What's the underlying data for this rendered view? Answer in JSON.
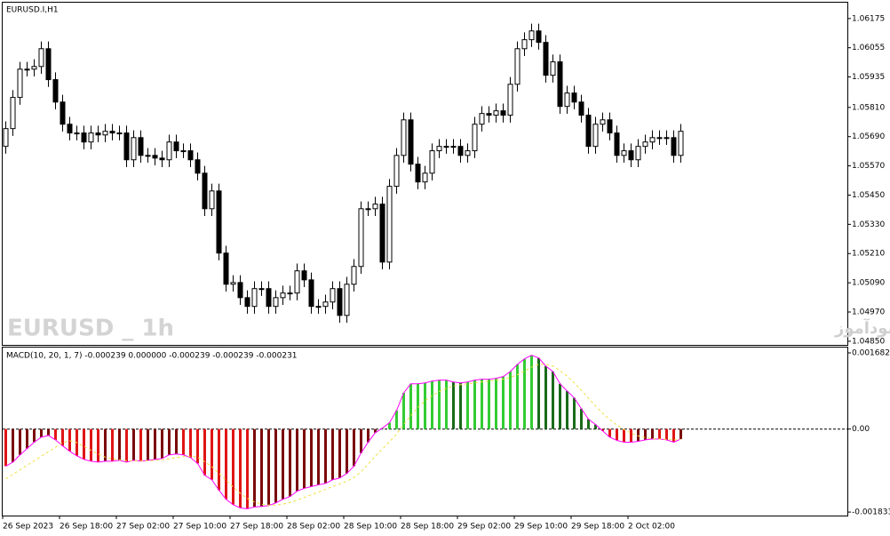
{
  "chart_data": [
    {
      "type": "candlestick",
      "title": "EURUSD.I,H1",
      "annotations": [
        "EURUSD _ 1h",
        "انتشار در سایت سودآموز"
      ],
      "up_color": "#ffffff",
      "down_color": "#000000",
      "outline_color": "#000000",
      "categories": [
        "26 Sep 2023",
        null,
        null,
        null,
        null,
        null,
        null,
        null,
        "26 Sep 18:00",
        null,
        null,
        null,
        null,
        null,
        null,
        null,
        "27 Sep 02:00",
        null,
        null,
        null,
        null,
        null,
        null,
        null,
        "27 Sep 10:00",
        null,
        null,
        null,
        null,
        null,
        null,
        null,
        "27 Sep 18:00",
        null,
        null,
        null,
        null,
        null,
        null,
        null,
        "28 Sep 02:00",
        null,
        null,
        null,
        null,
        null,
        null,
        null,
        "28 Sep 10:00",
        null,
        null,
        null,
        null,
        null,
        null,
        null,
        "28 Sep 18:00",
        null,
        null,
        null,
        null,
        null,
        null,
        null,
        "29 Sep 02:00",
        null,
        null,
        null,
        null,
        null,
        null,
        null,
        "29 Sep 10:00",
        null,
        null,
        null,
        null,
        null,
        null,
        null,
        "29 Sep 18:00",
        null,
        null,
        null,
        null,
        null,
        null,
        null,
        "2 Oct 02:00",
        null,
        null,
        null,
        null,
        null,
        null,
        null
      ],
      "open": [
        1.0565,
        1.05723,
        1.05851,
        1.05967,
        1.05967,
        1.05978,
        1.06051,
        1.05924,
        1.05832,
        1.05741,
        1.05705,
        1.05705,
        1.05668,
        1.05705,
        1.05697,
        1.05712,
        1.05705,
        1.05705,
        1.05595,
        1.05686,
        1.05613,
        1.05613,
        1.05602,
        1.05595,
        1.05668,
        1.05632,
        1.05632,
        1.05595,
        1.0554,
        1.05394,
        1.05467,
        1.05212,
        1.05084,
        1.05091,
        1.05029,
        1.04993,
        1.05066,
        1.05066,
        1.04993,
        1.05029,
        1.05048,
        1.05048,
        1.05139,
        1.05102,
        1.04993,
        1.04993,
        1.05011,
        1.05066,
        1.04956,
        1.05084,
        1.05157,
        1.05394,
        1.05394,
        1.05413,
        1.05175,
        1.05486,
        1.05613,
        1.05759,
        1.05577,
        1.05504,
        1.0554,
        1.05632,
        1.0565,
        1.0565,
        1.0565,
        1.05613,
        1.05632,
        1.05741,
        1.05785,
        1.05778,
        1.05796,
        1.05778,
        1.05905,
        1.06051,
        1.06088,
        1.06124,
        1.06077,
        1.05942,
        1.05997,
        1.05814,
        1.05869,
        1.05832,
        1.05778,
        1.0565,
        1.05741,
        1.05759,
        1.05705,
        1.05613,
        1.05632,
        1.05595,
        1.0565,
        1.05668,
        1.05686,
        1.05686,
        1.05686,
        1.05613
      ],
      "high": [
        1.05753,
        1.05881,
        1.05997,
        1.05997,
        1.06008,
        1.06081,
        1.06081,
        1.05954,
        1.05862,
        1.05771,
        1.05735,
        1.05735,
        1.05735,
        1.05735,
        1.05742,
        1.05742,
        1.05735,
        1.05735,
        1.05716,
        1.05716,
        1.05643,
        1.05643,
        1.05632,
        1.05698,
        1.05698,
        1.05662,
        1.05662,
        1.05625,
        1.0557,
        1.05497,
        1.05497,
        1.05242,
        1.05121,
        1.05121,
        1.05059,
        1.05096,
        1.05096,
        1.05096,
        1.05059,
        1.05078,
        1.05078,
        1.05169,
        1.05169,
        1.05132,
        1.05023,
        1.05041,
        1.05096,
        1.05096,
        1.05114,
        1.05187,
        1.05424,
        1.05424,
        1.05443,
        1.05443,
        1.05516,
        1.05643,
        1.05789,
        1.05789,
        1.05607,
        1.0557,
        1.05662,
        1.0568,
        1.0568,
        1.0568,
        1.0568,
        1.05662,
        1.05771,
        1.05815,
        1.05815,
        1.05826,
        1.05826,
        1.05935,
        1.06081,
        1.06118,
        1.06154,
        1.06154,
        1.06107,
        1.06027,
        1.06027,
        1.05899,
        1.05899,
        1.05862,
        1.05808,
        1.05771,
        1.05789,
        1.05789,
        1.05735,
        1.05662,
        1.05662,
        1.0568,
        1.05698,
        1.05716,
        1.05716,
        1.05716,
        1.05716,
        1.05742
      ],
      "low": [
        1.0562,
        1.05693,
        1.05821,
        1.05937,
        1.05937,
        1.05948,
        1.05894,
        1.05802,
        1.05711,
        1.05675,
        1.05675,
        1.05638,
        1.05638,
        1.05667,
        1.05667,
        1.05675,
        1.05675,
        1.05565,
        1.05565,
        1.05583,
        1.05583,
        1.05572,
        1.05565,
        1.05565,
        1.05602,
        1.05602,
        1.05565,
        1.0551,
        1.05364,
        1.05364,
        1.05182,
        1.05054,
        1.05054,
        1.04999,
        1.04963,
        1.04963,
        1.05036,
        1.04963,
        1.04963,
        1.04999,
        1.05018,
        1.05018,
        1.05072,
        1.04963,
        1.04963,
        1.04963,
        1.04981,
        1.04926,
        1.04926,
        1.05054,
        1.05127,
        1.05364,
        1.05364,
        1.05145,
        1.05145,
        1.05456,
        1.05583,
        1.05547,
        1.05474,
        1.05474,
        1.0551,
        1.05602,
        1.0562,
        1.0562,
        1.05583,
        1.05583,
        1.05602,
        1.05711,
        1.05748,
        1.05748,
        1.05748,
        1.05748,
        1.05875,
        1.06021,
        1.06058,
        1.06047,
        1.05912,
        1.05912,
        1.05784,
        1.05784,
        1.05802,
        1.05748,
        1.0562,
        1.0562,
        1.05711,
        1.05675,
        1.05583,
        1.05583,
        1.05565,
        1.05565,
        1.0562,
        1.05638,
        1.05656,
        1.05656,
        1.05583,
        1.05583
      ],
      "close": [
        1.05723,
        1.05851,
        1.05967,
        1.05967,
        1.05978,
        1.06051,
        1.05924,
        1.05832,
        1.05741,
        1.05705,
        1.05705,
        1.05668,
        1.05705,
        1.05697,
        1.05712,
        1.05705,
        1.05705,
        1.05595,
        1.05686,
        1.05613,
        1.05613,
        1.05602,
        1.05595,
        1.05668,
        1.05632,
        1.05632,
        1.05595,
        1.0554,
        1.05394,
        1.05467,
        1.05212,
        1.05084,
        1.05091,
        1.05029,
        1.04993,
        1.05066,
        1.05066,
        1.04993,
        1.05029,
        1.05048,
        1.05048,
        1.05139,
        1.05102,
        1.04993,
        1.04993,
        1.05011,
        1.05066,
        1.04956,
        1.05084,
        1.05157,
        1.05394,
        1.05394,
        1.05413,
        1.05175,
        1.05486,
        1.05613,
        1.05759,
        1.05577,
        1.05504,
        1.0554,
        1.05632,
        1.0565,
        1.0565,
        1.0565,
        1.05613,
        1.05632,
        1.05741,
        1.05785,
        1.05778,
        1.05796,
        1.05778,
        1.05905,
        1.06051,
        1.06088,
        1.06124,
        1.06077,
        1.05942,
        1.05997,
        1.05814,
        1.05869,
        1.05832,
        1.05778,
        1.0565,
        1.05741,
        1.05759,
        1.05705,
        1.05613,
        1.05632,
        1.05595,
        1.0565,
        1.05668,
        1.05686,
        1.05686,
        1.05686,
        1.05613,
        1.05712
      ],
      "ylim": [
        1.04835,
        1.0624
      ],
      "yticks": [
        1.06175,
        1.06055,
        1.05935,
        {
          "value": 1.0581,
          "label": "1.05810"
        },
        {
          "value": 1.0569,
          "label": "1.05690"
        },
        {
          "value": 1.0557,
          "label": "1.05570"
        },
        {
          "value": 1.0545,
          "label": "1.05450"
        },
        {
          "value": 1.0533,
          "label": "1.05330"
        },
        {
          "value": 1.0521,
          "label": "1.05210"
        },
        {
          "value": 1.0509,
          "label": "1.05090"
        },
        {
          "value": 1.0497,
          "label": "1.04970"
        },
        {
          "value": 1.0485,
          "label": "1.04850"
        }
      ]
    },
    {
      "type": "bar",
      "title": "MACD(10, 20, 1, 7) -0.000239 0.000000 -0.000239 -0.000239 -0.000231",
      "ylim": [
        -0.00191,
        0.0018
      ],
      "yticks": [
        0.001682,
        {
          "value": 0,
          "label": "0.00"
        },
        -0.001833
      ],
      "zero_line": true,
      "series": [
        {
          "color": "#ff00ff",
          "bar_colors": {
            "positive_rising": "#33cc33",
            "positive_falling": "#1a6b1a",
            "negative_falling": "#e01515",
            "negative_rising": "#7b0a0a"
          },
          "values": [
            -0.00082,
            -0.00073,
            -0.00057,
            -0.00043,
            -0.00029,
            -0.00018,
            -0.00014,
            -0.00024,
            -0.00037,
            -0.00049,
            -0.00059,
            -0.00067,
            -0.00071,
            -0.00073,
            -0.00071,
            -0.00071,
            -0.00069,
            -0.00073,
            -0.00069,
            -0.00071,
            -0.00069,
            -0.00067,
            -0.00065,
            -0.00057,
            -0.00055,
            -0.00057,
            -0.00063,
            -0.00076,
            -0.00102,
            -0.00112,
            -0.00135,
            -0.00155,
            -0.00167,
            -0.00174,
            -0.00176,
            -0.00172,
            -0.00171,
            -0.00169,
            -0.00163,
            -0.00155,
            -0.00149,
            -0.00137,
            -0.00131,
            -0.00127,
            -0.00123,
            -0.0012,
            -0.00112,
            -0.00108,
            -0.00098,
            -0.00082,
            -0.00053,
            -0.00029,
            -8e-05,
            2e-05,
            0.00014,
            0.00041,
            0.0008,
            0.001,
            0.001,
            0.00102,
            0.00106,
            0.00108,
            0.00108,
            0.00104,
            0.00102,
            0.00104,
            0.00108,
            0.0011,
            0.0011,
            0.00112,
            0.00116,
            0.00127,
            0.00143,
            0.00155,
            0.00163,
            0.00157,
            0.00139,
            0.00127,
            0.001,
            0.00084,
            0.00069,
            0.00045,
            0.00022,
            0.0001,
            -4e-05,
            -0.00018,
            -0.00025,
            -0.00029,
            -0.00029,
            -0.00027,
            -0.00024,
            -0.00022,
            -0.00022,
            -0.00024,
            -0.00029,
            -0.00022
          ]
        },
        {
          "color": "#f0e040",
          "dashed": true,
          "values": [
            -0.0011,
            -0.001,
            -0.0009,
            -0.0008,
            -0.0007,
            -0.0006,
            -0.0005,
            -0.0004,
            -0.0003,
            -0.00026,
            -0.0003,
            -0.00038,
            -0.00047,
            -0.00055,
            -0.00062,
            -0.00066,
            -0.00068,
            -0.0007,
            -0.0007,
            -0.0007,
            -0.0007,
            -0.00069,
            -0.00068,
            -0.00066,
            -0.00063,
            -0.00061,
            -0.0006,
            -0.00062,
            -0.00072,
            -0.00083,
            -0.00098,
            -0.00113,
            -0.00128,
            -0.00142,
            -0.00153,
            -0.00161,
            -0.00166,
            -0.00168,
            -0.00168,
            -0.00166,
            -0.00162,
            -0.00157,
            -0.00151,
            -0.00145,
            -0.00139,
            -0.00133,
            -0.00127,
            -0.00121,
            -0.00115,
            -0.00107,
            -0.00094,
            -0.00078,
            -0.0006,
            -0.00044,
            -0.00028,
            -0.00011,
            0.0001,
            0.0003,
            0.00048,
            0.00062,
            0.00074,
            0.00083,
            0.0009,
            0.00095,
            0.00098,
            0.001,
            0.00102,
            0.00104,
            0.00106,
            0.00108,
            0.0011,
            0.00114,
            0.0012,
            0.00128,
            0.00137,
            0.00143,
            0.00143,
            0.00139,
            0.00129,
            0.00117,
            0.00102,
            0.00086,
            0.00068,
            0.00051,
            0.00035,
            0.00021,
            9e-05,
            -1e-05,
            -9e-05,
            -0.00015,
            -0.00019,
            -0.00021,
            -0.00022,
            -0.00023,
            -0.00024,
            -0.00023
          ]
        }
      ]
    }
  ]
}
